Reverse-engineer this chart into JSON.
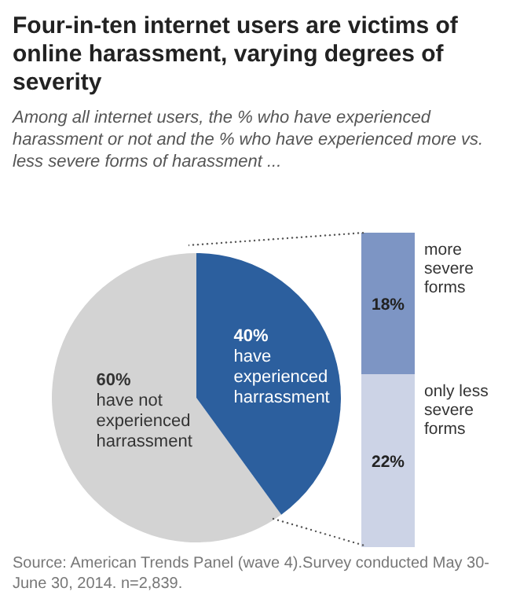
{
  "chart_data": [
    {
      "type": "pie",
      "title": "Four-in-ten  internet users are victims of online harassment, varying degrees of severity",
      "subtitle": "Among all internet users, the % who have experienced harassment or not and the % who have experienced more vs. less severe forms of harassment ...",
      "categories": [
        "have not experienced harrassment",
        "have experienced harrassment"
      ],
      "values": [
        60,
        40
      ],
      "colors": [
        "#d3d3d3",
        "#2c5f9e"
      ],
      "value_labels": [
        "60%",
        "40%"
      ],
      "annotations": [
        "Source: American Trends Panel (wave 4).Survey conducted May 30-June 30, 2014. n=2,839."
      ]
    },
    {
      "type": "bar",
      "stacked": true,
      "categories": [
        null
      ],
      "series": [
        {
          "name": "only less severe forms",
          "color": "#ccd3e6",
          "values": [
            22
          ],
          "value_labels": [
            "22%"
          ]
        },
        {
          "name": "more severe forms",
          "color": "#7d95c4",
          "values": [
            18
          ],
          "value_labels": [
            "18%"
          ]
        }
      ]
    }
  ]
}
